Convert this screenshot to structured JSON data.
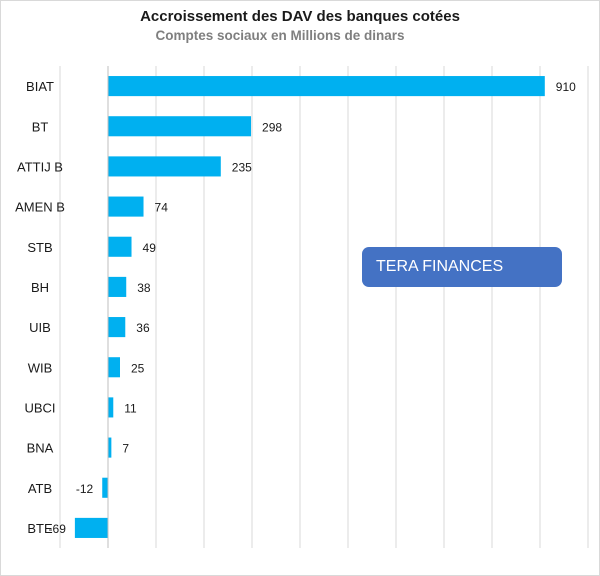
{
  "chart_data": {
    "type": "bar",
    "orientation": "horizontal",
    "title": "Accroissement des DAV des banques cotées",
    "subtitle": "Comptes sociaux en Millions de dinars",
    "categories": [
      "BIAT",
      "BT",
      "ATTIJ B",
      "AMEN B",
      "STB",
      "BH",
      "UIB",
      "WIB",
      "UBCI",
      "BNA",
      "ATB",
      "BTE"
    ],
    "values": [
      910,
      298,
      235,
      74,
      49,
      38,
      36,
      25,
      11,
      7,
      -12,
      -69
    ],
    "xlim": [
      -100,
      1000
    ],
    "grid": true,
    "bar_color": "#00b0f0",
    "xlabel": "",
    "ylabel": ""
  },
  "watermark": {
    "text": "TERA FINANCES",
    "color": "#4472c4"
  }
}
